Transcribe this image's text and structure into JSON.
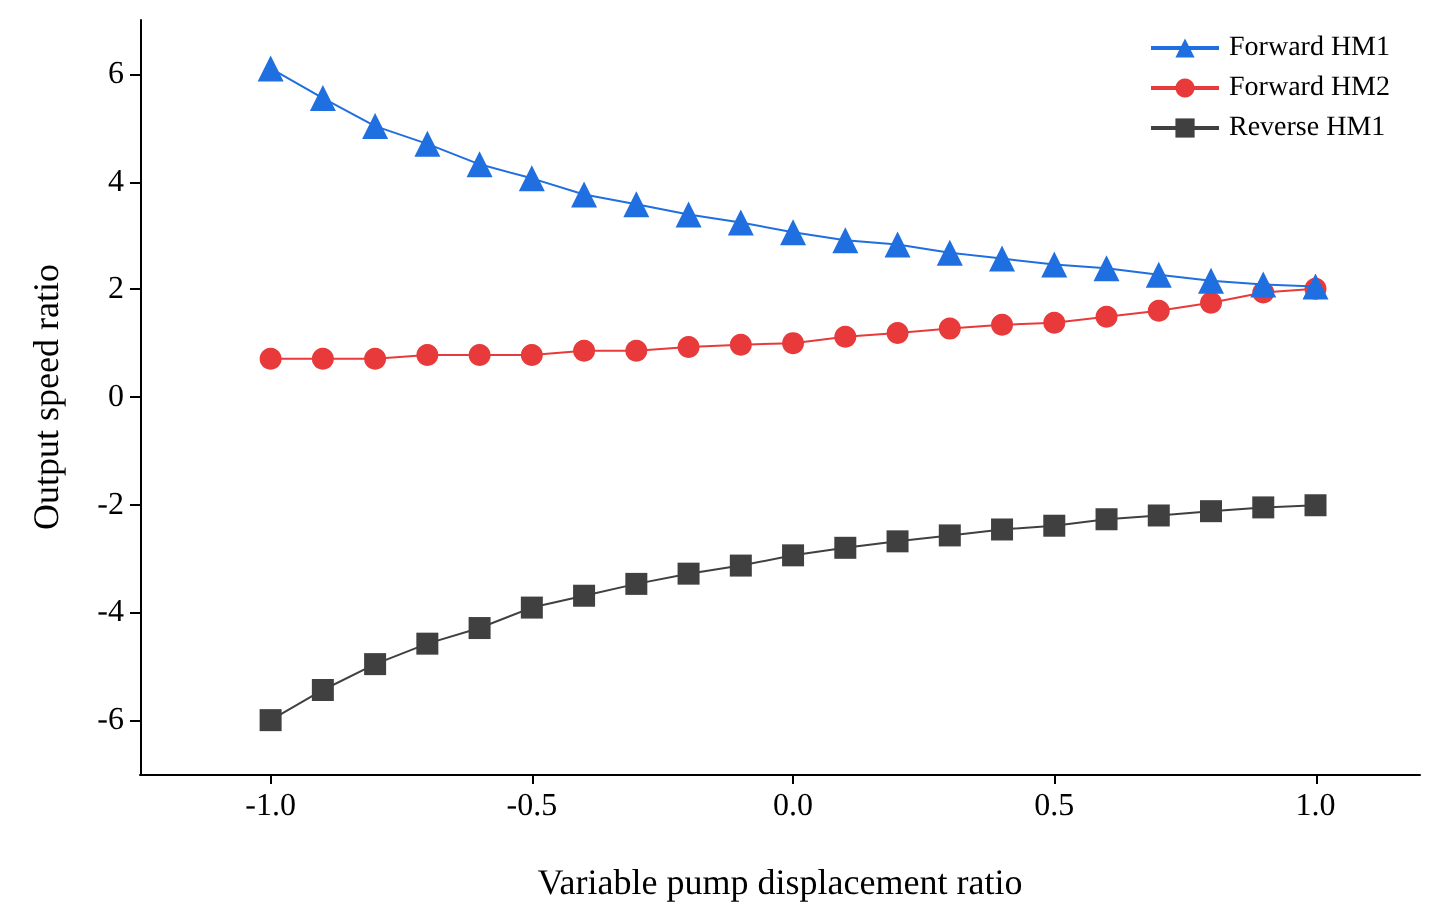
{
  "chart_data": {
    "type": "line",
    "xlabel": "Variable pump displacement ratio",
    "ylabel": "Output speed ratio",
    "x": [
      -1.0,
      -0.9,
      -0.8,
      -0.7,
      -0.6,
      -0.5,
      -0.4,
      -0.3,
      -0.2,
      -0.1,
      0.0,
      0.1,
      0.2,
      0.3,
      0.4,
      0.5,
      0.6,
      0.7,
      0.8,
      0.9,
      1.0
    ],
    "series": [
      {
        "name": "Forward HM1",
        "color": "#1f6fe0",
        "marker": "triangle",
        "values": [
          6.1,
          5.55,
          5.03,
          4.7,
          4.32,
          4.06,
          3.76,
          3.58,
          3.39,
          3.24,
          3.06,
          2.91,
          2.83,
          2.68,
          2.57,
          2.46,
          2.39,
          2.27,
          2.16,
          2.09,
          2.05
        ]
      },
      {
        "name": "Forward HM2",
        "color": "#e83a3a",
        "marker": "circle",
        "values": [
          0.71,
          0.71,
          0.71,
          0.78,
          0.78,
          0.78,
          0.86,
          0.86,
          0.93,
          0.97,
          1.0,
          1.12,
          1.19,
          1.27,
          1.34,
          1.38,
          1.49,
          1.6,
          1.75,
          1.94,
          2.01
        ]
      },
      {
        "name": "Reverse HM1",
        "color": "#404040",
        "marker": "square",
        "values": [
          -6.0,
          -5.44,
          -4.96,
          -4.58,
          -4.29,
          -3.91,
          -3.69,
          -3.47,
          -3.28,
          -3.13,
          -2.94,
          -2.8,
          -2.68,
          -2.57,
          -2.46,
          -2.39,
          -2.27,
          -2.2,
          -2.12,
          -2.05,
          -2.01
        ]
      }
    ],
    "xlim": [
      -1.25,
      1.2
    ],
    "xticks": [
      {
        "value": -1,
        "label": "-1.0"
      },
      {
        "value": -0.5,
        "label": "-0.5"
      },
      {
        "value": 0,
        "label": "0.0"
      },
      {
        "value": 0.5,
        "label": "0.5"
      },
      {
        "value": 1,
        "label": "1.0"
      }
    ],
    "ylim": [
      -7,
      7
    ],
    "yticks": [
      {
        "value": -6,
        "label": "-6"
      },
      {
        "value": -4,
        "label": "-4"
      },
      {
        "value": -2,
        "label": "-2"
      },
      0,
      2,
      4,
      6
    ],
    "grid": false,
    "legend": "top right",
    "line_style": "solid"
  }
}
